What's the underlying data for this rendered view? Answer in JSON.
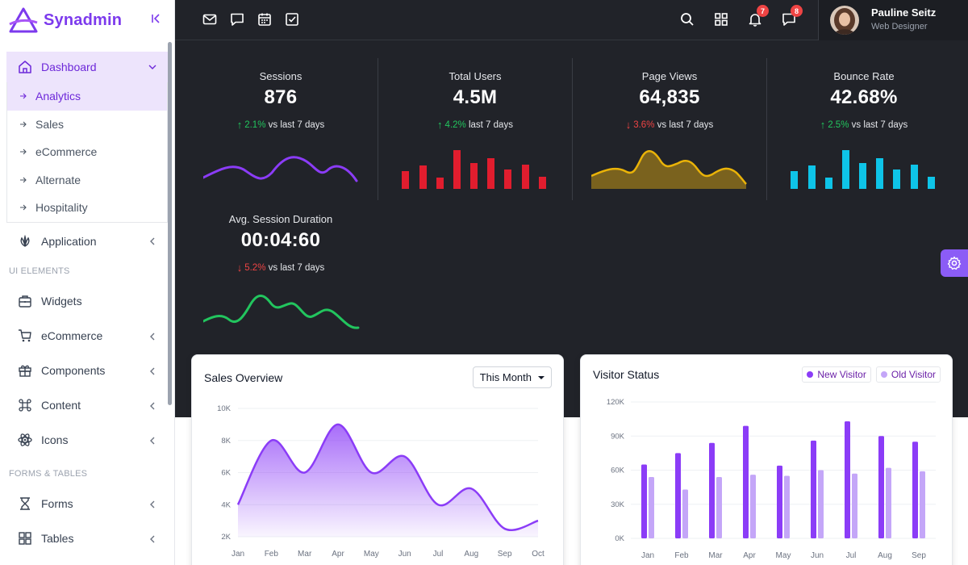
{
  "brand": {
    "name": "Synadmin"
  },
  "sidebar": {
    "dashboard": {
      "label": "Dashboard",
      "icon": "home-icon"
    },
    "sub_items": [
      {
        "label": "Analytics",
        "active": true
      },
      {
        "label": "Sales"
      },
      {
        "label": "eCommerce"
      },
      {
        "label": "Alternate"
      },
      {
        "label": "Hospitality"
      }
    ],
    "application": {
      "label": "Application",
      "icon": "application-icon"
    },
    "ui_elements_label": "UI ELEMENTS",
    "ui_items": [
      {
        "label": "Widgets",
        "icon": "briefcase-icon"
      },
      {
        "label": "eCommerce",
        "icon": "cart-icon"
      },
      {
        "label": "Components",
        "icon": "gift-icon"
      },
      {
        "label": "Content",
        "icon": "command-icon"
      },
      {
        "label": "Icons",
        "icon": "atom-icon"
      }
    ],
    "forms_tables_label": "FORMS & TABLES",
    "form_items": [
      {
        "label": "Forms",
        "icon": "hourglass-icon"
      },
      {
        "label": "Tables",
        "icon": "grid-icon"
      }
    ]
  },
  "topbar": {
    "notifications_badge": "7",
    "messages_badge": "8",
    "user": {
      "name": "Pauline Seitz",
      "role": "Web Designer"
    }
  },
  "stats": [
    {
      "title": "Sessions",
      "value": "876",
      "direction": "up",
      "change": "2.1%",
      "suffix": "vs last 7 days",
      "color": "#8b3cf7"
    },
    {
      "title": "Total Users",
      "value": "4.5M",
      "direction": "up",
      "change": "4.2%",
      "suffix": "last 7 days",
      "color": "#e11d2e"
    },
    {
      "title": "Page Views",
      "value": "64,835",
      "direction": "down",
      "change": "3.6%",
      "suffix": "vs last 7 days",
      "color": "#eab308"
    },
    {
      "title": "Bounce Rate",
      "value": "42.68%",
      "direction": "up",
      "change": "2.5%",
      "suffix": "vs last 7 days",
      "color": "#0ec4e8"
    },
    {
      "title": "Avg. Session Duration",
      "value": "00:04:60",
      "direction": "down",
      "change": "5.2%",
      "suffix": "vs last 7 days",
      "color": "#22c55e"
    }
  ],
  "sales_overview": {
    "title": "Sales Overview",
    "period": "This Month"
  },
  "visitor_status": {
    "title": "Visitor Status",
    "legend": {
      "new": "New Visitor",
      "old": "Old Visitor"
    },
    "colors": {
      "new": "#8b3cf7",
      "old": "#c4a6f8"
    }
  },
  "chart_data": [
    {
      "type": "area",
      "title": "Sales Overview",
      "categories": [
        "Jan",
        "Feb",
        "Mar",
        "Apr",
        "May",
        "Jun",
        "Jul",
        "Aug",
        "Sep",
        "Oct"
      ],
      "values": [
        4000,
        8000,
        6000,
        9000,
        6000,
        7000,
        4000,
        5000,
        2500,
        3000
      ],
      "ylim": [
        2000,
        10000
      ],
      "yticks": [
        "2K",
        "4K",
        "6K",
        "8K",
        "10K"
      ],
      "grid": true,
      "color": "#8b3cf7"
    },
    {
      "type": "bar",
      "title": "Visitor Status",
      "categories": [
        "Jan",
        "Feb",
        "Mar",
        "Apr",
        "May",
        "Jun",
        "Jul",
        "Aug",
        "Sep"
      ],
      "series": [
        {
          "name": "New Visitor",
          "values": [
            65000,
            75000,
            84000,
            99000,
            64000,
            86000,
            103000,
            90000,
            85000
          ]
        },
        {
          "name": "Old Visitor",
          "values": [
            54000,
            43000,
            54000,
            56000,
            55000,
            60000,
            57000,
            62000,
            59000
          ]
        }
      ],
      "ylim": [
        0,
        120000
      ],
      "yticks": [
        "0K",
        "30K",
        "60K",
        "90K",
        "120K"
      ],
      "legend_position": "top-right",
      "grid": true
    }
  ]
}
